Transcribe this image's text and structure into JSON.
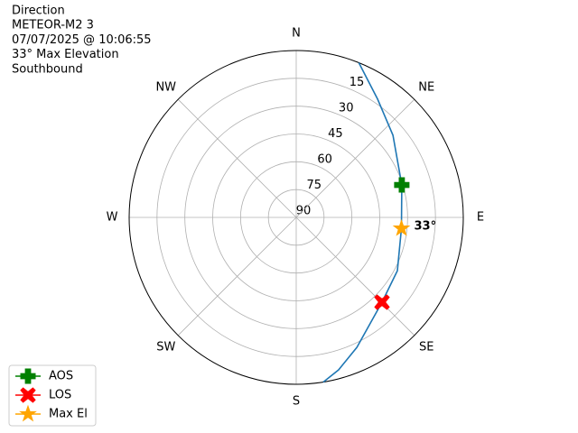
{
  "chart_data": {
    "type": "polar",
    "title_lines": [
      "Direction",
      "METEOR-M2 3",
      "07/07/2025 @ 10:06:55",
      "33° Max Elevation",
      "Southbound"
    ],
    "theta_zero": "N",
    "theta_direction": "clockwise",
    "xticks": [
      {
        "value": 0,
        "label": "N"
      },
      {
        "value": 45,
        "label": "NE"
      },
      {
        "value": 90,
        "label": "E"
      },
      {
        "value": 135,
        "label": "SE"
      },
      {
        "value": 180,
        "label": "S"
      },
      {
        "value": 225,
        "label": "SW"
      },
      {
        "value": 270,
        "label": "W"
      },
      {
        "value": 315,
        "label": "NW"
      }
    ],
    "ylim": [
      90,
      0
    ],
    "yticks": [
      90,
      75,
      60,
      45,
      30,
      15
    ],
    "grid": true,
    "legend": "lower left",
    "track": {
      "color": "#1f77b4",
      "x": [
        22,
        34.5,
        49.6,
        72.9,
        96,
        117.8,
        134.7,
        155,
        164.5,
        170.7
      ],
      "values": [
        0,
        12.6,
        21.6,
        30.5,
        33,
        28.4,
        25,
        12.7,
        4.7,
        0
      ]
    },
    "series": [
      {
        "name": "AOS",
        "color": "#008000",
        "marker": "plus",
        "x": [
          72.9
        ],
        "values": [
          30.5
        ]
      },
      {
        "name": "LOS",
        "color": "#ff0000",
        "marker": "x",
        "x": [
          134.7
        ],
        "values": [
          25
        ]
      },
      {
        "name": "Max El",
        "color": "#ffa500",
        "marker": "star",
        "x": [
          96
        ],
        "values": [
          33
        ],
        "value_labels": [
          "33°"
        ]
      }
    ]
  }
}
